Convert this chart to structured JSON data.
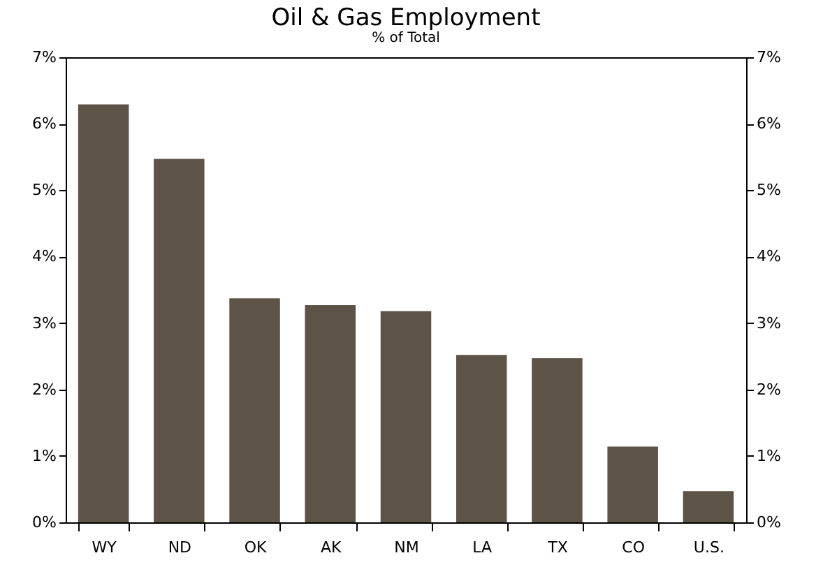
{
  "chart_data": {
    "type": "bar",
    "title": "Oil & Gas Employment",
    "subtitle": "% of Total",
    "categories": [
      "WY",
      "ND",
      "OK",
      "AK",
      "NM",
      "LA",
      "TX",
      "CO",
      "U.S."
    ],
    "values": [
      6.29,
      5.47,
      3.37,
      3.27,
      3.18,
      2.52,
      2.47,
      1.14,
      0.47
    ],
    "color": "#5e5347",
    "ylim": [
      0,
      7
    ],
    "yticks": [
      {
        "value": 0,
        "label": "0%"
      },
      {
        "value": 1,
        "label": "1%"
      },
      {
        "value": 2,
        "label": "2%"
      },
      {
        "value": 3,
        "label": "3%"
      },
      {
        "value": 4,
        "label": "4%"
      },
      {
        "value": 5,
        "label": "5%"
      },
      {
        "value": 6,
        "label": "6%"
      },
      {
        "value": 7,
        "label": "7%"
      }
    ],
    "y2lim": [
      0,
      7
    ],
    "y2ticks": [
      {
        "value": 0,
        "label": "0%"
      },
      {
        "value": 1,
        "label": "1%"
      },
      {
        "value": 2,
        "label": "2%"
      },
      {
        "value": 3,
        "label": "3%"
      },
      {
        "value": 4,
        "label": "4%"
      },
      {
        "value": 5,
        "label": "5%"
      },
      {
        "value": 6,
        "label": "6%"
      },
      {
        "value": 7,
        "label": "7%"
      }
    ],
    "grid": false
  }
}
